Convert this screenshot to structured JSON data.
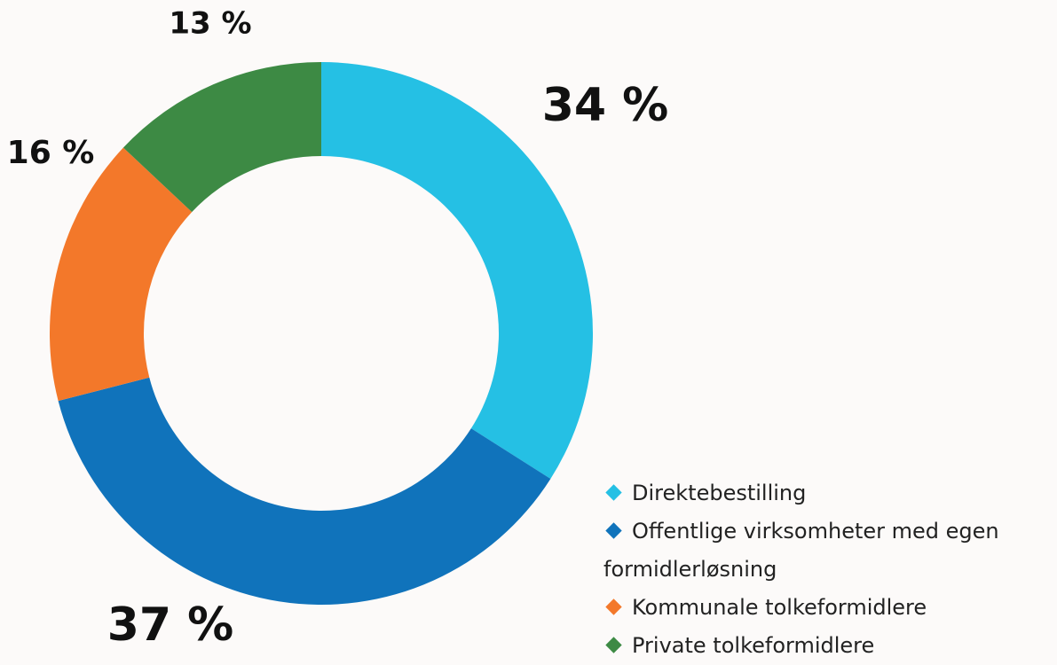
{
  "chart_data": {
    "type": "donut",
    "categories": [
      "Direktebestilling",
      "Offentlige virksomheter med egen formidlerløsning",
      "Kommunale tolkeformidlere",
      "Private tolkeformidlere"
    ],
    "values": [
      34,
      37,
      16,
      13
    ],
    "value_labels": [
      "34 %",
      "37 %",
      "16 %",
      "13 %"
    ],
    "colors": [
      "#25c0e4",
      "#1073bb",
      "#f3782a",
      "#3d8a44"
    ],
    "legend": "bottom-right"
  }
}
